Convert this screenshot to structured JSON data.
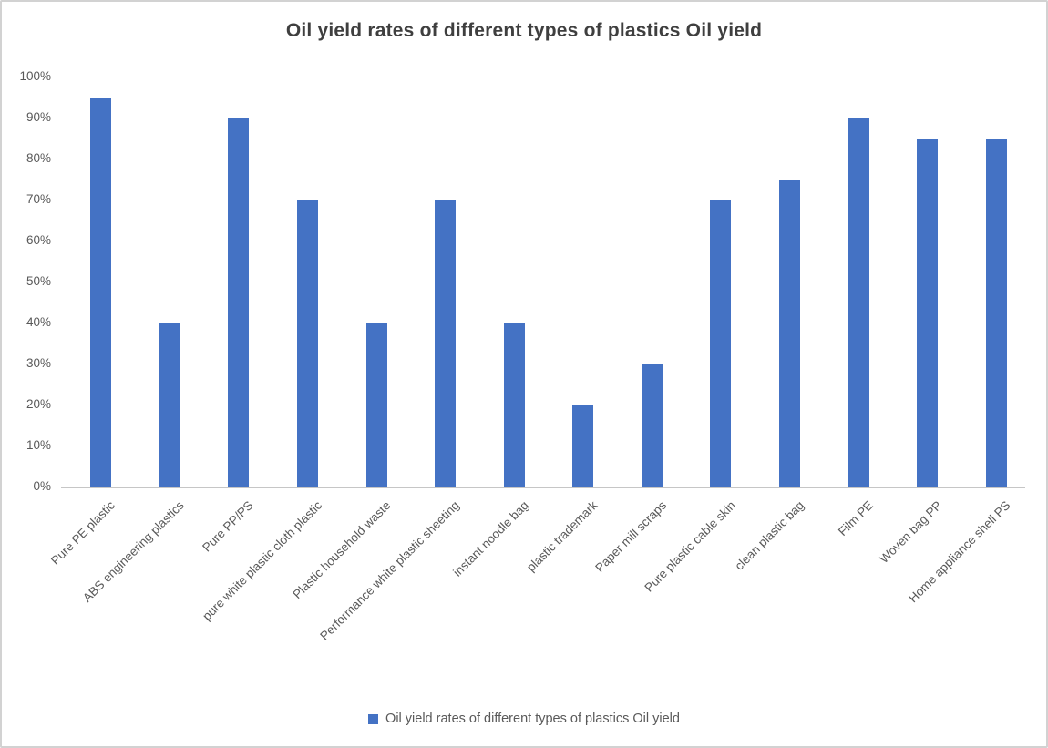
{
  "chart": {
    "title": "Oil yield rates of different types of plastics Oil yield",
    "legend_label": "Oil yield rates of different types of plastics Oil yield"
  },
  "colors": {
    "bar": "#4472C4",
    "gridline": "#D9D9D9",
    "axis_line": "#C6C6C6",
    "title_text": "#3F3F3F",
    "tick_text": "#595959"
  },
  "chart_data": {
    "type": "bar",
    "title": "Oil yield rates of different types of plastics Oil yield",
    "categories": [
      "Pure PE plastic",
      "ABS engineering plastics",
      "Pure PP/PS",
      "pure white plastic cloth plastic",
      "Plastic household waste",
      "Performance white plastic sheeting",
      "instant noodle bag",
      "plastic trademark",
      "Paper mill scraps",
      "Pure plastic cable skin",
      "clean plastic bag",
      "Film PE",
      "Woven bag PP",
      "Home appliance shell PS"
    ],
    "values": [
      95,
      40,
      90,
      70,
      40,
      70,
      40,
      20,
      30,
      70,
      75,
      90,
      85,
      85
    ],
    "y_ticks": [
      "0%",
      "10%",
      "20%",
      "30%",
      "40%",
      "50%",
      "60%",
      "70%",
      "80%",
      "90%",
      "100%"
    ],
    "ylim": [
      0,
      100
    ],
    "y_tick_step": 10,
    "grid": "horizontal",
    "xlabel": "",
    "ylabel": "",
    "legend": [
      "Oil yield rates of different types of plastics Oil yield"
    ],
    "legend_position": "bottom",
    "bar_color": "#4472C4"
  }
}
